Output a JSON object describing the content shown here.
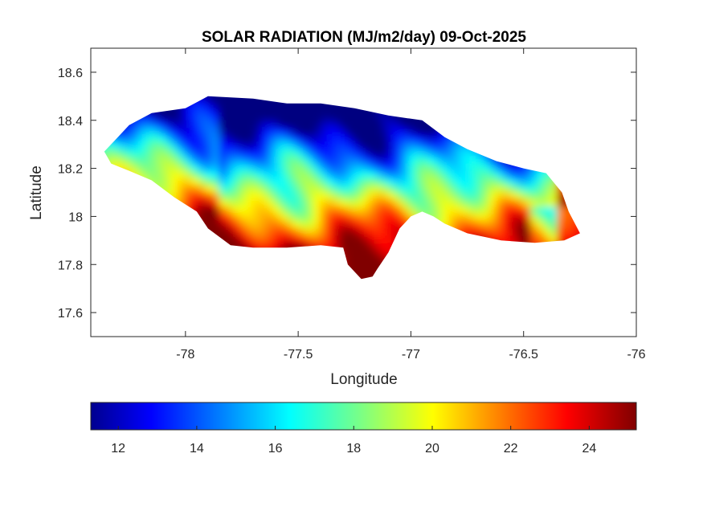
{
  "chart_data": {
    "type": "heatmap",
    "title": "SOLAR RADIATION (MJ/m2/day) 09-Oct-2025",
    "xlabel": "Longitude",
    "ylabel": "Latitude",
    "xlim": [
      -78.42,
      -76.0
    ],
    "ylim": [
      17.5,
      18.7
    ],
    "x_ticks": [
      -78,
      -77.5,
      -77,
      -76.5,
      -76
    ],
    "x_tick_labels": [
      "-78",
      "-77.5",
      "-77",
      "-76.5",
      "-76"
    ],
    "y_ticks": [
      17.6,
      17.8,
      18.0,
      18.2,
      18.4,
      18.6
    ],
    "y_tick_labels": [
      "17.6",
      "17.8",
      "18",
      "18.2",
      "18.4",
      "18.6"
    ],
    "grid": false,
    "colormap": "jet",
    "colorbar": {
      "orientation": "horizontal",
      "placement": "bottom",
      "clim": [
        11.3,
        25.2
      ],
      "ticks": [
        12,
        14,
        16,
        18,
        20,
        22,
        24
      ],
      "tick_labels": [
        "12",
        "14",
        "16",
        "18",
        "20",
        "22",
        "24"
      ]
    },
    "outline": [
      [
        -78.36,
        18.27
      ],
      [
        -78.3,
        18.33
      ],
      [
        -78.25,
        18.38
      ],
      [
        -78.15,
        18.43
      ],
      [
        -78.0,
        18.45
      ],
      [
        -77.9,
        18.5
      ],
      [
        -77.7,
        18.49
      ],
      [
        -77.55,
        18.47
      ],
      [
        -77.4,
        18.47
      ],
      [
        -77.25,
        18.45
      ],
      [
        -77.1,
        18.42
      ],
      [
        -76.95,
        18.4
      ],
      [
        -76.85,
        18.33
      ],
      [
        -76.75,
        18.28
      ],
      [
        -76.62,
        18.23
      ],
      [
        -76.5,
        18.2
      ],
      [
        -76.4,
        18.18
      ],
      [
        -76.33,
        18.1
      ],
      [
        -76.3,
        18.02
      ],
      [
        -76.25,
        17.93
      ],
      [
        -76.32,
        17.9
      ],
      [
        -76.45,
        17.89
      ],
      [
        -76.6,
        17.9
      ],
      [
        -76.75,
        17.93
      ],
      [
        -76.85,
        17.97
      ],
      [
        -76.9,
        18.0
      ],
      [
        -76.95,
        18.02
      ],
      [
        -77.0,
        18.0
      ],
      [
        -77.05,
        17.95
      ],
      [
        -77.1,
        17.85
      ],
      [
        -77.15,
        17.78
      ],
      [
        -77.17,
        17.75
      ],
      [
        -77.22,
        17.74
      ],
      [
        -77.28,
        17.8
      ],
      [
        -77.3,
        17.87
      ],
      [
        -77.4,
        17.88
      ],
      [
        -77.55,
        17.87
      ],
      [
        -77.7,
        17.87
      ],
      [
        -77.8,
        17.88
      ],
      [
        -77.9,
        17.95
      ],
      [
        -77.95,
        18.02
      ],
      [
        -78.05,
        18.08
      ],
      [
        -78.15,
        18.15
      ],
      [
        -78.25,
        18.19
      ],
      [
        -78.33,
        18.22
      ]
    ]
  }
}
